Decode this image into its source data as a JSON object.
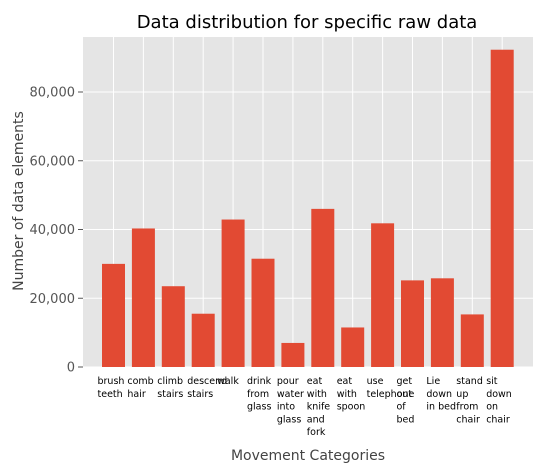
{
  "chart_data": {
    "type": "bar",
    "title": "Data distribution for specific raw data",
    "xlabel": "Movement Categories",
    "ylabel": "Number of data elements",
    "categories": [
      "brush teeth",
      "comb hair",
      "climb stairs",
      "descend stairs",
      "walk",
      "drink from glass",
      "pour water into glass",
      "eat with knife and fork",
      "eat with spoon",
      "use telephone",
      "get out of bed",
      "Lie down in bed",
      "stand up from chair",
      "sit down on chair"
    ],
    "category_label_lines": [
      [
        "brush",
        "teeth"
      ],
      [
        "comb",
        "hair"
      ],
      [
        "climb",
        "stairs"
      ],
      [
        "descend",
        "stairs"
      ],
      [
        "walk"
      ],
      [
        "drink",
        "from",
        "glass"
      ],
      [
        "pour",
        "water",
        "into",
        "glass"
      ],
      [
        "eat",
        "with",
        "knife",
        "and",
        "fork"
      ],
      [
        "eat",
        "with",
        "spoon"
      ],
      [
        "use",
        "telephone"
      ],
      [
        "get",
        "out",
        "of",
        "bed"
      ],
      [
        "Lie",
        "down",
        "in bed"
      ],
      [
        "stand",
        "up",
        "from",
        "chair"
      ],
      [
        "sit",
        "down",
        "on",
        "chair"
      ]
    ],
    "values": [
      30000,
      40300,
      23500,
      15500,
      42900,
      31500,
      7000,
      46000,
      11500,
      41800,
      25200,
      25800,
      15300,
      92300
    ],
    "ylim": [
      0,
      96000
    ],
    "yticks": [
      0,
      20000,
      40000,
      60000,
      80000
    ],
    "ytick_labels": [
      "0",
      "20,000",
      "40,000",
      "60,000",
      "80,000"
    ],
    "grid": true,
    "bar_color": "#e24a33",
    "background_color": "#e5e5e5"
  }
}
